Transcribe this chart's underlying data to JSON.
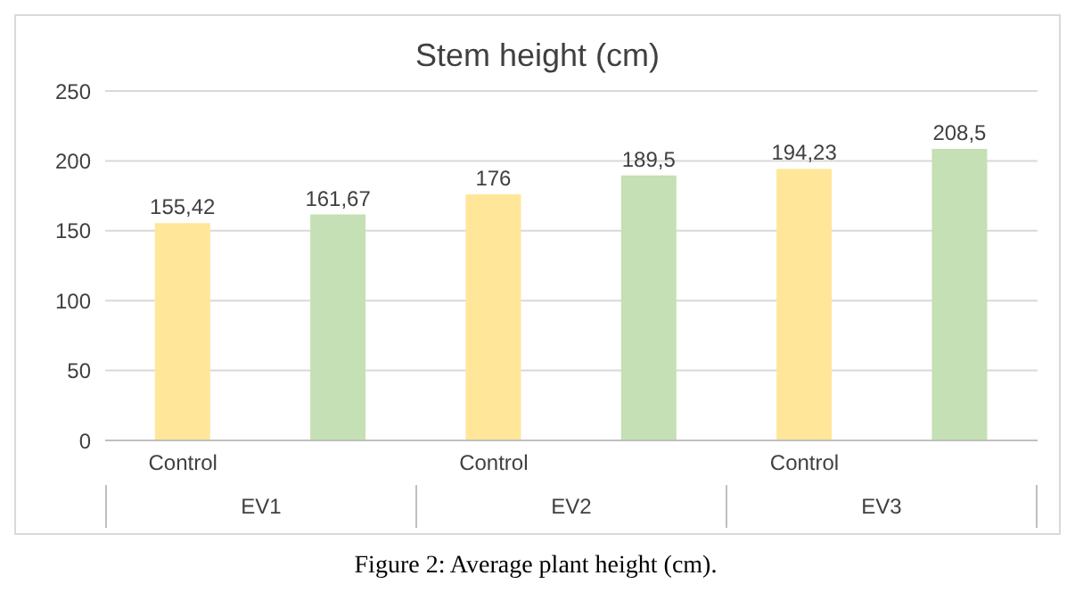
{
  "chart_data": {
    "type": "bar",
    "title": "Stem height (cm)",
    "categories": [
      "Control",
      null,
      "Control",
      null,
      "Control",
      null
    ],
    "values": [
      155.42,
      161.67,
      176,
      189.5,
      194.23,
      208.5
    ],
    "value_labels": [
      "155,42",
      "161,67",
      "176",
      "189,5",
      "194,23",
      "208,5"
    ],
    "colors": [
      "#ffe699",
      "#c5e0b4",
      "#ffe699",
      "#c5e0b4",
      "#ffe699",
      "#c5e0b4"
    ],
    "ylim": [
      0,
      250
    ],
    "yticks": [
      0,
      50,
      100,
      150,
      200,
      250
    ],
    "grid": "y",
    "annotations": [
      "EV1",
      "EV2",
      "EV3",
      "Figure 2: Average plant height (cm)."
    ]
  }
}
